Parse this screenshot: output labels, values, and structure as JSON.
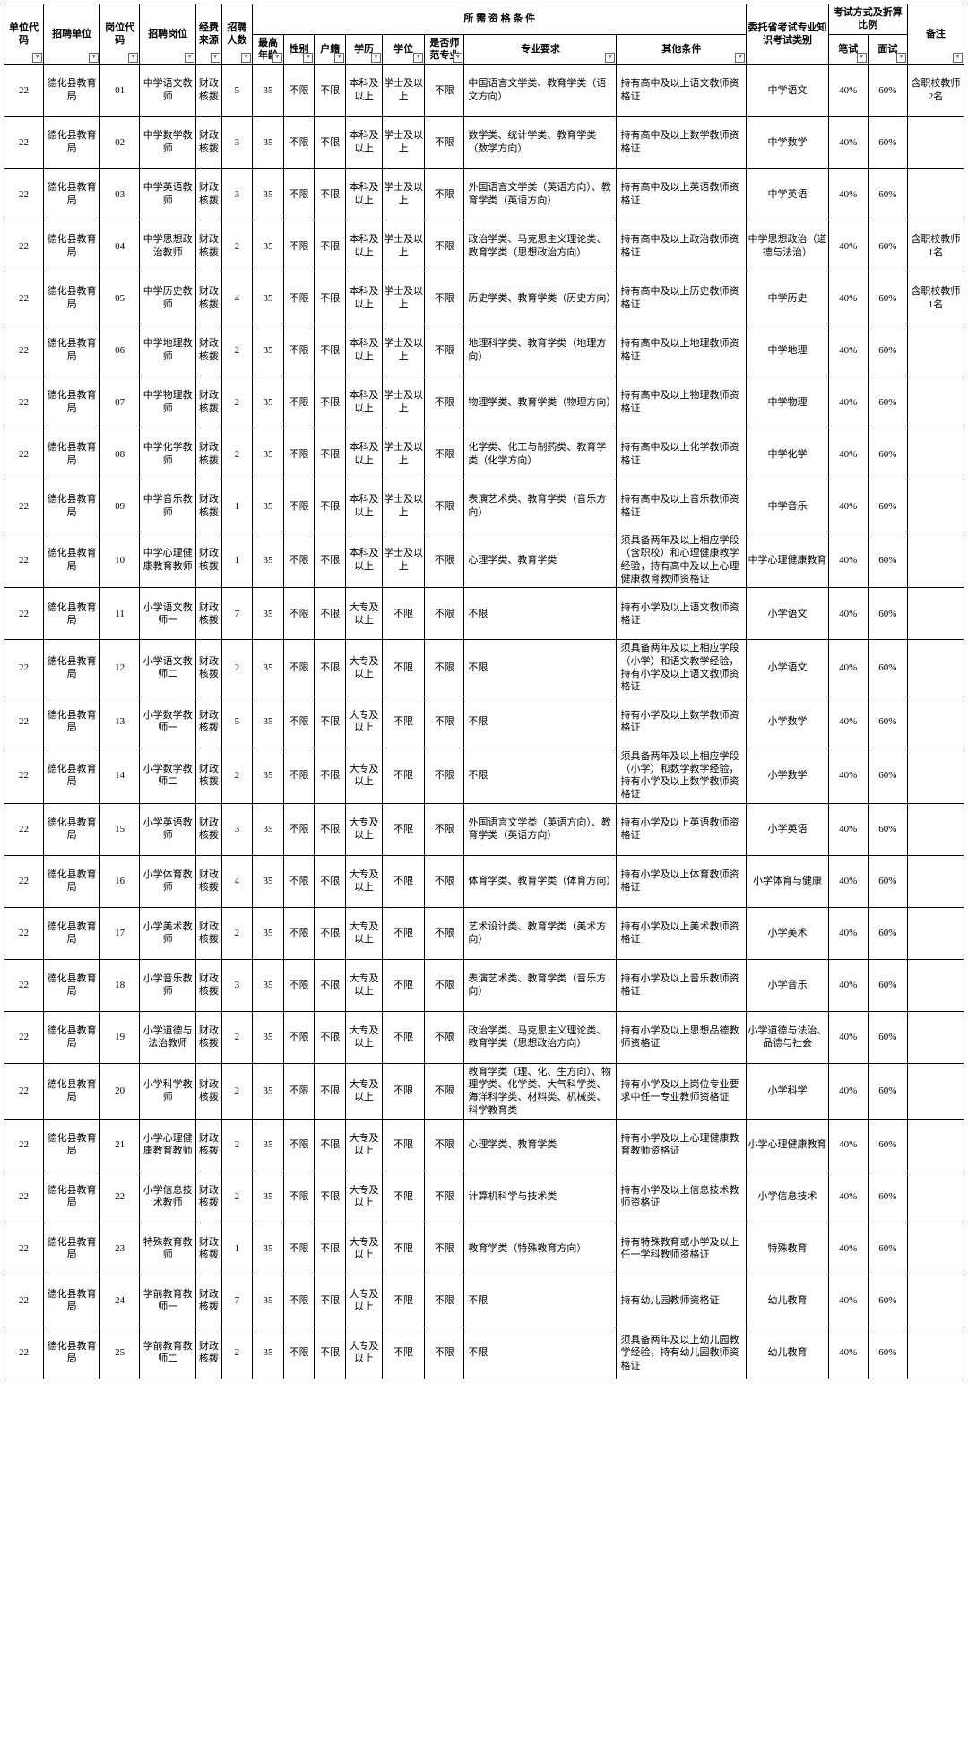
{
  "headers": {
    "h1": "单位代码",
    "h2": "招聘单位",
    "h3": "岗位代码",
    "h4": "招聘岗位",
    "h5": "经费来源",
    "h6": "招聘人数",
    "hq": "所 需 资 格 条 件",
    "h7": "最高年龄",
    "h8": "性别",
    "h9": "户籍",
    "h10": "学历",
    "h11": "学位",
    "h12": "是否师范专业",
    "h13": "专业要求",
    "h14": "其他条件",
    "h15": "委托省考试专业知识考试类别",
    "hr": "考试方式及折算比例",
    "h16": "笔试",
    "h17": "面试",
    "h18": "备注"
  },
  "fund": "财政核拨",
  "rows": [
    {
      "code": "22",
      "unit": "德化县教育局",
      "pcode": "01",
      "pos": "中学语文教师",
      "num": "5",
      "age": "35",
      "sex": "不限",
      "hk": "不限",
      "edu": "本科及以上",
      "deg": "学士及以上",
      "norm": "不限",
      "major": "中国语言文学类、教育学类（语文方向）",
      "other": "持有高中及以上语文教师资格证",
      "exam": "中学语文",
      "wr": "40%",
      "iv": "60%",
      "note": "含职校教师2名"
    },
    {
      "code": "22",
      "unit": "德化县教育局",
      "pcode": "02",
      "pos": "中学数学教师",
      "num": "3",
      "age": "35",
      "sex": "不限",
      "hk": "不限",
      "edu": "本科及以上",
      "deg": "学士及以上",
      "norm": "不限",
      "major": "数学类、统计学类、教育学类（数学方向）",
      "other": "持有高中及以上数学教师资格证",
      "exam": "中学数学",
      "wr": "40%",
      "iv": "60%",
      "note": ""
    },
    {
      "code": "22",
      "unit": "德化县教育局",
      "pcode": "03",
      "pos": "中学英语教师",
      "num": "3",
      "age": "35",
      "sex": "不限",
      "hk": "不限",
      "edu": "本科及以上",
      "deg": "学士及以上",
      "norm": "不限",
      "major": "外国语言文学类（英语方向）、教育学类（英语方向）",
      "other": "持有高中及以上英语教师资格证",
      "exam": "中学英语",
      "wr": "40%",
      "iv": "60%",
      "note": ""
    },
    {
      "code": "22",
      "unit": "德化县教育局",
      "pcode": "04",
      "pos": "中学思想政治教师",
      "num": "2",
      "age": "35",
      "sex": "不限",
      "hk": "不限",
      "edu": "本科及以上",
      "deg": "学士及以上",
      "norm": "不限",
      "major": "政治学类、马克思主义理论类、教育学类（思想政治方向）",
      "other": "持有高中及以上政治教师资格证",
      "exam": "中学思想政治（道德与法治）",
      "wr": "40%",
      "iv": "60%",
      "note": "含职校教师1名"
    },
    {
      "code": "22",
      "unit": "德化县教育局",
      "pcode": "05",
      "pos": "中学历史教师",
      "num": "4",
      "age": "35",
      "sex": "不限",
      "hk": "不限",
      "edu": "本科及以上",
      "deg": "学士及以上",
      "norm": "不限",
      "major": "历史学类、教育学类（历史方向）",
      "other": "持有高中及以上历史教师资格证",
      "exam": "中学历史",
      "wr": "40%",
      "iv": "60%",
      "note": "含职校教师1名"
    },
    {
      "code": "22",
      "unit": "德化县教育局",
      "pcode": "06",
      "pos": "中学地理教师",
      "num": "2",
      "age": "35",
      "sex": "不限",
      "hk": "不限",
      "edu": "本科及以上",
      "deg": "学士及以上",
      "norm": "不限",
      "major": "地理科学类、教育学类（地理方向）",
      "other": "持有高中及以上地理教师资格证",
      "exam": "中学地理",
      "wr": "40%",
      "iv": "60%",
      "note": ""
    },
    {
      "code": "22",
      "unit": "德化县教育局",
      "pcode": "07",
      "pos": "中学物理教师",
      "num": "2",
      "age": "35",
      "sex": "不限",
      "hk": "不限",
      "edu": "本科及以上",
      "deg": "学士及以上",
      "norm": "不限",
      "major": "物理学类、教育学类（物理方向）",
      "other": "持有高中及以上物理教师资格证",
      "exam": "中学物理",
      "wr": "40%",
      "iv": "60%",
      "note": ""
    },
    {
      "code": "22",
      "unit": "德化县教育局",
      "pcode": "08",
      "pos": "中学化学教师",
      "num": "2",
      "age": "35",
      "sex": "不限",
      "hk": "不限",
      "edu": "本科及以上",
      "deg": "学士及以上",
      "norm": "不限",
      "major": "化学类、化工与制药类、教育学类（化学方向）",
      "other": "持有高中及以上化学教师资格证",
      "exam": "中学化学",
      "wr": "40%",
      "iv": "60%",
      "note": ""
    },
    {
      "code": "22",
      "unit": "德化县教育局",
      "pcode": "09",
      "pos": "中学音乐教师",
      "num": "1",
      "age": "35",
      "sex": "不限",
      "hk": "不限",
      "edu": "本科及以上",
      "deg": "学士及以上",
      "norm": "不限",
      "major": "表演艺术类、教育学类（音乐方向）",
      "other": "持有高中及以上音乐教师资格证",
      "exam": "中学音乐",
      "wr": "40%",
      "iv": "60%",
      "note": ""
    },
    {
      "code": "22",
      "unit": "德化县教育局",
      "pcode": "10",
      "pos": "中学心理健康教育教师",
      "num": "1",
      "age": "35",
      "sex": "不限",
      "hk": "不限",
      "edu": "本科及以上",
      "deg": "学士及以上",
      "norm": "不限",
      "major": "心理学类、教育学类",
      "other": "须具备两年及以上相应学段（含职校）和心理健康教学经验，持有高中及以上心理健康教育教师资格证",
      "exam": "中学心理健康教育",
      "wr": "40%",
      "iv": "60%",
      "note": ""
    },
    {
      "code": "22",
      "unit": "德化县教育局",
      "pcode": "11",
      "pos": "小学语文教师一",
      "num": "7",
      "age": "35",
      "sex": "不限",
      "hk": "不限",
      "edu": "大专及以上",
      "deg": "不限",
      "norm": "不限",
      "major": "不限",
      "other": "持有小学及以上语文教师资格证",
      "exam": "小学语文",
      "wr": "40%",
      "iv": "60%",
      "note": ""
    },
    {
      "code": "22",
      "unit": "德化县教育局",
      "pcode": "12",
      "pos": "小学语文教师二",
      "num": "2",
      "age": "35",
      "sex": "不限",
      "hk": "不限",
      "edu": "大专及以上",
      "deg": "不限",
      "norm": "不限",
      "major": "不限",
      "other": "须具备两年及以上相应学段（小学）和语文教学经验，持有小学及以上语文教师资格证",
      "exam": "小学语文",
      "wr": "40%",
      "iv": "60%",
      "note": ""
    },
    {
      "code": "22",
      "unit": "德化县教育局",
      "pcode": "13",
      "pos": "小学数学教师一",
      "num": "5",
      "age": "35",
      "sex": "不限",
      "hk": "不限",
      "edu": "大专及以上",
      "deg": "不限",
      "norm": "不限",
      "major": "不限",
      "other": "持有小学及以上数学教师资格证",
      "exam": "小学数学",
      "wr": "40%",
      "iv": "60%",
      "note": ""
    },
    {
      "code": "22",
      "unit": "德化县教育局",
      "pcode": "14",
      "pos": "小学数学教师二",
      "num": "2",
      "age": "35",
      "sex": "不限",
      "hk": "不限",
      "edu": "大专及以上",
      "deg": "不限",
      "norm": "不限",
      "major": "不限",
      "other": "须具备两年及以上相应学段（小学）和数学教学经验，持有小学及以上数学教师资格证",
      "exam": "小学数学",
      "wr": "40%",
      "iv": "60%",
      "note": ""
    },
    {
      "code": "22",
      "unit": "德化县教育局",
      "pcode": "15",
      "pos": "小学英语教师",
      "num": "3",
      "age": "35",
      "sex": "不限",
      "hk": "不限",
      "edu": "大专及以上",
      "deg": "不限",
      "norm": "不限",
      "major": "外国语言文学类（英语方向）、教育学类（英语方向）",
      "other": "持有小学及以上英语教师资格证",
      "exam": "小学英语",
      "wr": "40%",
      "iv": "60%",
      "note": ""
    },
    {
      "code": "22",
      "unit": "德化县教育局",
      "pcode": "16",
      "pos": "小学体育教师",
      "num": "4",
      "age": "35",
      "sex": "不限",
      "hk": "不限",
      "edu": "大专及以上",
      "deg": "不限",
      "norm": "不限",
      "major": "体育学类、教育学类（体育方向）",
      "other": "持有小学及以上体育教师资格证",
      "exam": "小学体育与健康",
      "wr": "40%",
      "iv": "60%",
      "note": ""
    },
    {
      "code": "22",
      "unit": "德化县教育局",
      "pcode": "17",
      "pos": "小学美术教师",
      "num": "2",
      "age": "35",
      "sex": "不限",
      "hk": "不限",
      "edu": "大专及以上",
      "deg": "不限",
      "norm": "不限",
      "major": "艺术设计类、教育学类（美术方向）",
      "other": "持有小学及以上美术教师资格证",
      "exam": "小学美术",
      "wr": "40%",
      "iv": "60%",
      "note": ""
    },
    {
      "code": "22",
      "unit": "德化县教育局",
      "pcode": "18",
      "pos": "小学音乐教师",
      "num": "3",
      "age": "35",
      "sex": "不限",
      "hk": "不限",
      "edu": "大专及以上",
      "deg": "不限",
      "norm": "不限",
      "major": "表演艺术类、教育学类（音乐方向）",
      "other": "持有小学及以上音乐教师资格证",
      "exam": "小学音乐",
      "wr": "40%",
      "iv": "60%",
      "note": ""
    },
    {
      "code": "22",
      "unit": "德化县教育局",
      "pcode": "19",
      "pos": "小学道德与法治教师",
      "num": "2",
      "age": "35",
      "sex": "不限",
      "hk": "不限",
      "edu": "大专及以上",
      "deg": "不限",
      "norm": "不限",
      "major": "政治学类、马克思主义理论类、教育学类（思想政治方向）",
      "other": "持有小学及以上思想品德教师资格证",
      "exam": "小学道德与法治、品德与社会",
      "wr": "40%",
      "iv": "60%",
      "note": ""
    },
    {
      "code": "22",
      "unit": "德化县教育局",
      "pcode": "20",
      "pos": "小学科学教师",
      "num": "2",
      "age": "35",
      "sex": "不限",
      "hk": "不限",
      "edu": "大专及以上",
      "deg": "不限",
      "norm": "不限",
      "major": "教育学类（理、化、生方向）、物理学类、化学类、大气科学类、海洋科学类、材料类、机械类、科学教育类",
      "other": "持有小学及以上岗位专业要求中任一专业教师资格证",
      "exam": "小学科学",
      "wr": "40%",
      "iv": "60%",
      "note": ""
    },
    {
      "code": "22",
      "unit": "德化县教育局",
      "pcode": "21",
      "pos": "小学心理健康教育教师",
      "num": "2",
      "age": "35",
      "sex": "不限",
      "hk": "不限",
      "edu": "大专及以上",
      "deg": "不限",
      "norm": "不限",
      "major": "心理学类、教育学类",
      "other": "持有小学及以上心理健康教育教师资格证",
      "exam": "小学心理健康教育",
      "wr": "40%",
      "iv": "60%",
      "note": ""
    },
    {
      "code": "22",
      "unit": "德化县教育局",
      "pcode": "22",
      "pos": "小学信息技术教师",
      "num": "2",
      "age": "35",
      "sex": "不限",
      "hk": "不限",
      "edu": "大专及以上",
      "deg": "不限",
      "norm": "不限",
      "major": "计算机科学与技术类",
      "other": "持有小学及以上信息技术教师资格证",
      "exam": "小学信息技术",
      "wr": "40%",
      "iv": "60%",
      "note": ""
    },
    {
      "code": "22",
      "unit": "德化县教育局",
      "pcode": "23",
      "pos": "特殊教育教师",
      "num": "1",
      "age": "35",
      "sex": "不限",
      "hk": "不限",
      "edu": "大专及以上",
      "deg": "不限",
      "norm": "不限",
      "major": "教育学类（特殊教育方向）",
      "other": "持有特殊教育或小学及以上任一学科教师资格证",
      "exam": "特殊教育",
      "wr": "40%",
      "iv": "60%",
      "note": ""
    },
    {
      "code": "22",
      "unit": "德化县教育局",
      "pcode": "24",
      "pos": "学前教育教师一",
      "num": "7",
      "age": "35",
      "sex": "不限",
      "hk": "不限",
      "edu": "大专及以上",
      "deg": "不限",
      "norm": "不限",
      "major": "不限",
      "other": "持有幼儿园教师资格证",
      "exam": "幼儿教育",
      "wr": "40%",
      "iv": "60%",
      "note": ""
    },
    {
      "code": "22",
      "unit": "德化县教育局",
      "pcode": "25",
      "pos": "学前教育教师二",
      "num": "2",
      "age": "35",
      "sex": "不限",
      "hk": "不限",
      "edu": "大专及以上",
      "deg": "不限",
      "norm": "不限",
      "major": "不限",
      "other": "须具备两年及以上幼儿园教学经验，持有幼儿园教师资格证",
      "exam": "幼儿教育",
      "wr": "40%",
      "iv": "60%",
      "note": ""
    }
  ]
}
